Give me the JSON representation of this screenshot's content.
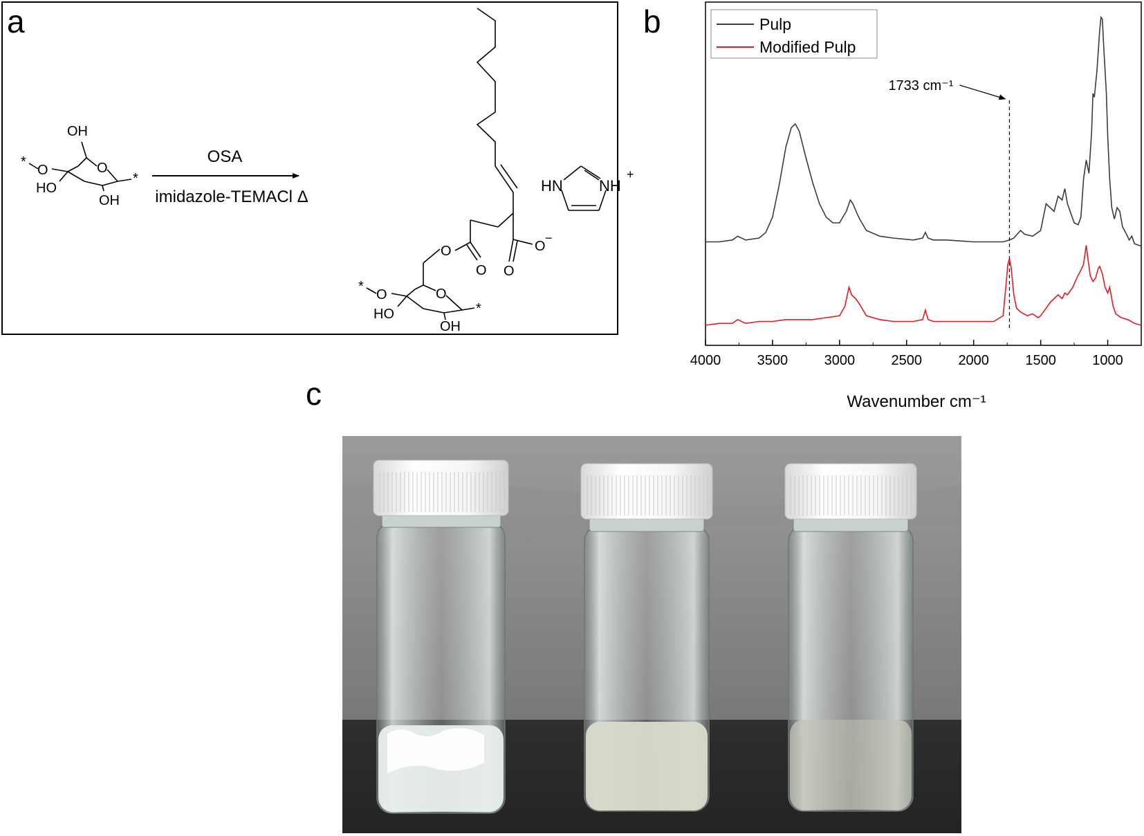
{
  "panels": {
    "a": "a",
    "b": "b",
    "c": "c"
  },
  "scheme": {
    "reagent_top": "OSA",
    "reagent_bottom": "imidazole-TEMACl Δ",
    "reactant_labels": {
      "oh_top": "OH",
      "oh_left": "HO",
      "oh_bottom": "OH",
      "ring_o": "O",
      "link_o": "O",
      "star_left": "*",
      "star_right": "*"
    },
    "product_labels": {
      "oh_left": "HO",
      "oh_bottom": "OH",
      "ring_o": "O",
      "link_o": "O",
      "ester_o": "O",
      "carbonyl_o1": "O",
      "carbonyl_o2": "O",
      "carboxylate_o": "O",
      "minus": "−",
      "star_left": "*",
      "star_right": "*"
    },
    "imidazolium": {
      "hn": "HN",
      "nh": "NH",
      "plus": "+"
    }
  },
  "chart_data": {
    "type": "line",
    "xlabel": "Wavenumber cm⁻¹",
    "x_reversed": true,
    "xlim": [
      4000,
      750
    ],
    "xticks": [
      4000,
      3500,
      3000,
      2500,
      2000,
      1500,
      1000
    ],
    "yticks_shown": false,
    "legend_position": "top-left",
    "annotation": {
      "text": "1733 cm⁻¹",
      "x": 1733
    },
    "series": [
      {
        "name": "Pulp",
        "color": "#3a3a3a",
        "offset": 1.0,
        "points": [
          [
            4000,
            0.02
          ],
          [
            3900,
            0.02
          ],
          [
            3800,
            0.03
          ],
          [
            3760,
            0.05
          ],
          [
            3700,
            0.03
          ],
          [
            3600,
            0.04
          ],
          [
            3550,
            0.07
          ],
          [
            3500,
            0.15
          ],
          [
            3450,
            0.32
          ],
          [
            3400,
            0.52
          ],
          [
            3360,
            0.62
          ],
          [
            3330,
            0.64
          ],
          [
            3300,
            0.6
          ],
          [
            3250,
            0.46
          ],
          [
            3200,
            0.33
          ],
          [
            3150,
            0.22
          ],
          [
            3100,
            0.15
          ],
          [
            3050,
            0.12
          ],
          [
            3000,
            0.12
          ],
          [
            2950,
            0.18
          ],
          [
            2920,
            0.24
          ],
          [
            2900,
            0.22
          ],
          [
            2870,
            0.17
          ],
          [
            2850,
            0.14
          ],
          [
            2800,
            0.08
          ],
          [
            2700,
            0.05
          ],
          [
            2600,
            0.04
          ],
          [
            2450,
            0.03
          ],
          [
            2380,
            0.04
          ],
          [
            2360,
            0.07
          ],
          [
            2340,
            0.04
          ],
          [
            2300,
            0.03
          ],
          [
            2200,
            0.03
          ],
          [
            2000,
            0.02
          ],
          [
            1850,
            0.02
          ],
          [
            1780,
            0.02
          ],
          [
            1733,
            0.03
          ],
          [
            1700,
            0.04
          ],
          [
            1650,
            0.08
          ],
          [
            1620,
            0.06
          ],
          [
            1560,
            0.05
          ],
          [
            1500,
            0.08
          ],
          [
            1460,
            0.22
          ],
          [
            1430,
            0.2
          ],
          [
            1400,
            0.18
          ],
          [
            1370,
            0.26
          ],
          [
            1340,
            0.24
          ],
          [
            1320,
            0.3
          ],
          [
            1300,
            0.22
          ],
          [
            1250,
            0.12
          ],
          [
            1220,
            0.11
          ],
          [
            1200,
            0.15
          ],
          [
            1180,
            0.35
          ],
          [
            1160,
            0.45
          ],
          [
            1140,
            0.38
          ],
          [
            1120,
            0.6
          ],
          [
            1110,
            0.8
          ],
          [
            1100,
            0.78
          ],
          [
            1080,
            0.92
          ],
          [
            1060,
            1.13
          ],
          [
            1050,
            1.2
          ],
          [
            1040,
            1.19
          ],
          [
            1030,
            1.05
          ],
          [
            1010,
            0.8
          ],
          [
            1000,
            0.58
          ],
          [
            985,
            0.35
          ],
          [
            970,
            0.2
          ],
          [
            950,
            0.14
          ],
          [
            930,
            0.2
          ],
          [
            910,
            0.18
          ],
          [
            890,
            0.1
          ],
          [
            860,
            0.06
          ],
          [
            840,
            0.03
          ],
          [
            820,
            0.05
          ],
          [
            800,
            0.01
          ],
          [
            760,
            0.0
          ],
          [
            750,
            0.0
          ]
        ]
      },
      {
        "name": "Modified Pulp",
        "color": "#e31b23",
        "offset": 0.0,
        "points": [
          [
            4000,
            0.0
          ],
          [
            3900,
            0.01
          ],
          [
            3800,
            0.01
          ],
          [
            3760,
            0.03
          ],
          [
            3700,
            0.01
          ],
          [
            3600,
            0.02
          ],
          [
            3500,
            0.02
          ],
          [
            3400,
            0.03
          ],
          [
            3300,
            0.03
          ],
          [
            3200,
            0.03
          ],
          [
            3100,
            0.04
          ],
          [
            3000,
            0.05
          ],
          [
            2960,
            0.1
          ],
          [
            2930,
            0.2
          ],
          [
            2910,
            0.16
          ],
          [
            2880,
            0.14
          ],
          [
            2850,
            0.11
          ],
          [
            2800,
            0.05
          ],
          [
            2700,
            0.03
          ],
          [
            2600,
            0.02
          ],
          [
            2450,
            0.02
          ],
          [
            2380,
            0.03
          ],
          [
            2360,
            0.08
          ],
          [
            2340,
            0.03
          ],
          [
            2300,
            0.02
          ],
          [
            2200,
            0.02
          ],
          [
            2000,
            0.02
          ],
          [
            1850,
            0.02
          ],
          [
            1780,
            0.05
          ],
          [
            1760,
            0.2
          ],
          [
            1745,
            0.32
          ],
          [
            1733,
            0.35
          ],
          [
            1720,
            0.3
          ],
          [
            1700,
            0.16
          ],
          [
            1680,
            0.09
          ],
          [
            1650,
            0.07
          ],
          [
            1600,
            0.05
          ],
          [
            1560,
            0.06
          ],
          [
            1520,
            0.04
          ],
          [
            1500,
            0.05
          ],
          [
            1460,
            0.09
          ],
          [
            1430,
            0.12
          ],
          [
            1400,
            0.14
          ],
          [
            1370,
            0.16
          ],
          [
            1340,
            0.14
          ],
          [
            1320,
            0.17
          ],
          [
            1300,
            0.16
          ],
          [
            1260,
            0.2
          ],
          [
            1230,
            0.25
          ],
          [
            1200,
            0.29
          ],
          [
            1180,
            0.32
          ],
          [
            1165,
            0.4
          ],
          [
            1160,
            0.42
          ],
          [
            1150,
            0.36
          ],
          [
            1130,
            0.26
          ],
          [
            1110,
            0.23
          ],
          [
            1090,
            0.25
          ],
          [
            1070,
            0.3
          ],
          [
            1060,
            0.31
          ],
          [
            1040,
            0.27
          ],
          [
            1020,
            0.2
          ],
          [
            1000,
            0.17
          ],
          [
            985,
            0.2
          ],
          [
            975,
            0.16
          ],
          [
            960,
            0.1
          ],
          [
            940,
            0.06
          ],
          [
            900,
            0.04
          ],
          [
            850,
            0.03
          ],
          [
            800,
            0.01
          ],
          [
            750,
            0.0
          ]
        ]
      }
    ]
  },
  "photo": {
    "vials": [
      {
        "cap": "white",
        "content": "cloudy-white"
      },
      {
        "cap": "white",
        "content": "translucent"
      },
      {
        "cap": "white",
        "content": "clear"
      }
    ]
  }
}
